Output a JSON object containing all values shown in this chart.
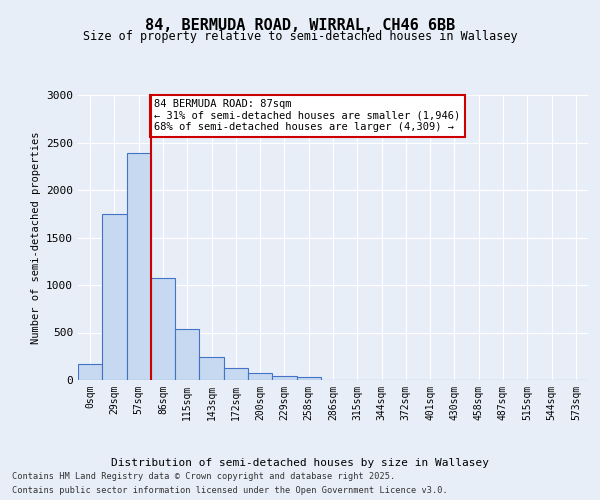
{
  "title_line1": "84, BERMUDA ROAD, WIRRAL, CH46 6BB",
  "title_line2": "Size of property relative to semi-detached houses in Wallasey",
  "xlabel": "Distribution of semi-detached houses by size in Wallasey",
  "ylabel": "Number of semi-detached properties",
  "footer_line1": "Contains HM Land Registry data © Crown copyright and database right 2025.",
  "footer_line2": "Contains public sector information licensed under the Open Government Licence v3.0.",
  "bin_labels": [
    "0sqm",
    "29sqm",
    "57sqm",
    "86sqm",
    "115sqm",
    "143sqm",
    "172sqm",
    "200sqm",
    "229sqm",
    "258sqm",
    "286sqm",
    "315sqm",
    "344sqm",
    "372sqm",
    "401sqm",
    "430sqm",
    "458sqm",
    "487sqm",
    "515sqm",
    "544sqm",
    "573sqm"
  ],
  "bar_values": [
    170,
    1750,
    2390,
    1075,
    540,
    240,
    130,
    75,
    45,
    30,
    0,
    0,
    0,
    0,
    0,
    0,
    0,
    0,
    0,
    0,
    0
  ],
  "bar_color": "#c6d9f0",
  "bar_edge_color": "#4472c4",
  "vline_x_index": 2.5,
  "vline_color": "#cc0000",
  "annotation_text": "84 BERMUDA ROAD: 87sqm\n← 31% of semi-detached houses are smaller (1,946)\n68% of semi-detached houses are larger (4,309) →",
  "annotation_box_edgecolor": "#cc0000",
  "ylim": [
    0,
    3000
  ],
  "background_color": "#e8eef8",
  "plot_bg_color": "#e8eef8",
  "grid_color": "#ffffff"
}
